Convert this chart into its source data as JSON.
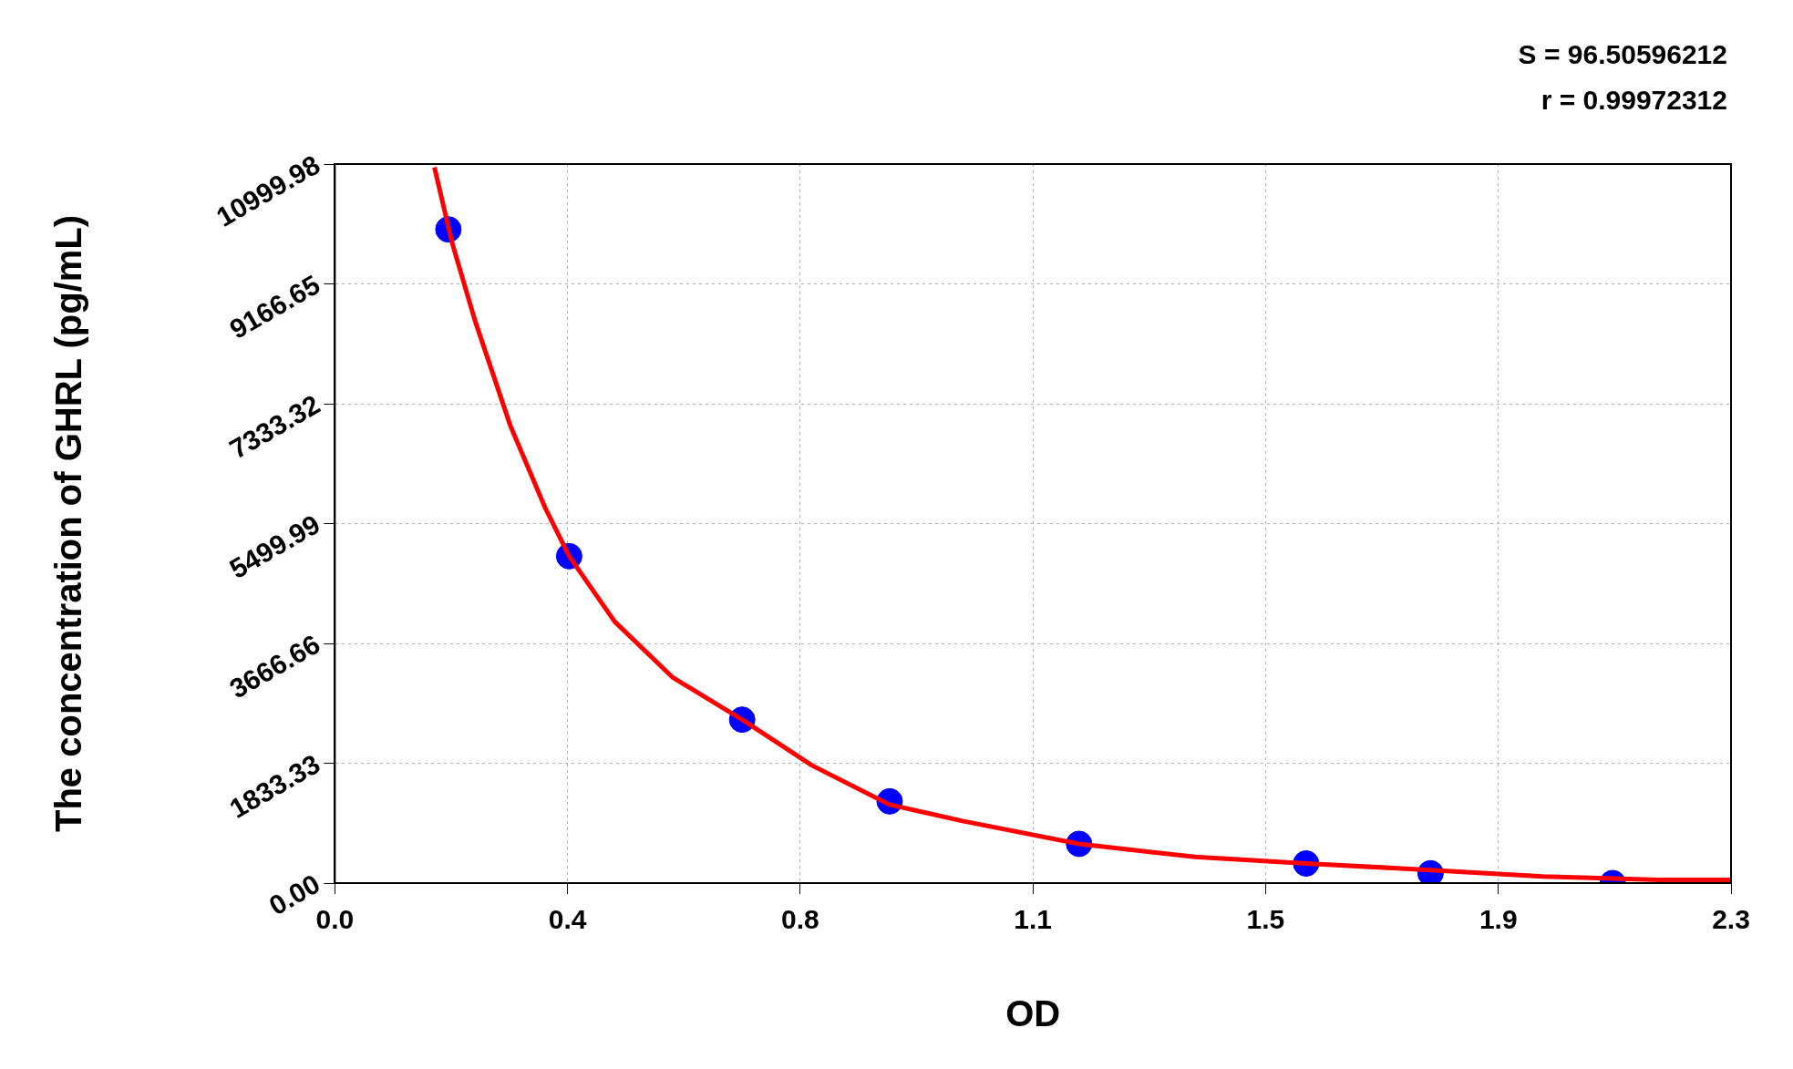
{
  "chart_data": {
    "type": "scatter",
    "xlabel": "OD",
    "ylabel": "The concentration of GHRL (pg/mL)",
    "annotations": [
      "S = 96.50596212",
      "r = 0.99972312"
    ],
    "xlim": [
      0,
      2.3
    ],
    "xticks": [
      {
        "value": 0,
        "label": "0.0"
      },
      {
        "value": 0.3833,
        "label": "0.4"
      },
      {
        "value": 0.7667,
        "label": "0.8"
      },
      {
        "value": 1.15,
        "label": "1.1"
      },
      {
        "value": 1.5333,
        "label": "1.5"
      },
      {
        "value": 1.9167,
        "label": "1.9"
      },
      {
        "value": 2.3,
        "label": "2.3"
      }
    ],
    "ylim": [
      0,
      10999.98
    ],
    "yticks": [
      {
        "value": 0,
        "label": "0.00"
      },
      1833.33,
      3666.66,
      5499.99,
      7333.32,
      9166.65,
      10999.98
    ],
    "grid": true,
    "legend": false,
    "series": [
      {
        "type": "scatter",
        "color": "#0000ff",
        "marker": "circle",
        "x": [
          0.187,
          0.386,
          0.671,
          0.914,
          1.226,
          1.6,
          1.805,
          2.105
        ],
        "values": [
          10000,
          5000,
          2500,
          1250,
          600,
          300,
          150,
          0
        ]
      },
      {
        "type": "line",
        "color": "#ff0000",
        "marker": "none",
        "line_style": "solid",
        "x": [
          0.164,
          0.193,
          0.231,
          0.289,
          0.346,
          0.386,
          0.461,
          0.556,
          0.671,
          0.786,
          0.914,
          1.034,
          1.226,
          1.417,
          1.6,
          1.805,
          1.99,
          2.182,
          2.3
        ],
        "values": [
          10950,
          9800,
          8600,
          7000,
          5750,
          5000,
          4000,
          3150,
          2500,
          1800,
          1200,
          950,
          600,
          400,
          300,
          200,
          100,
          50,
          50
        ]
      }
    ]
  }
}
